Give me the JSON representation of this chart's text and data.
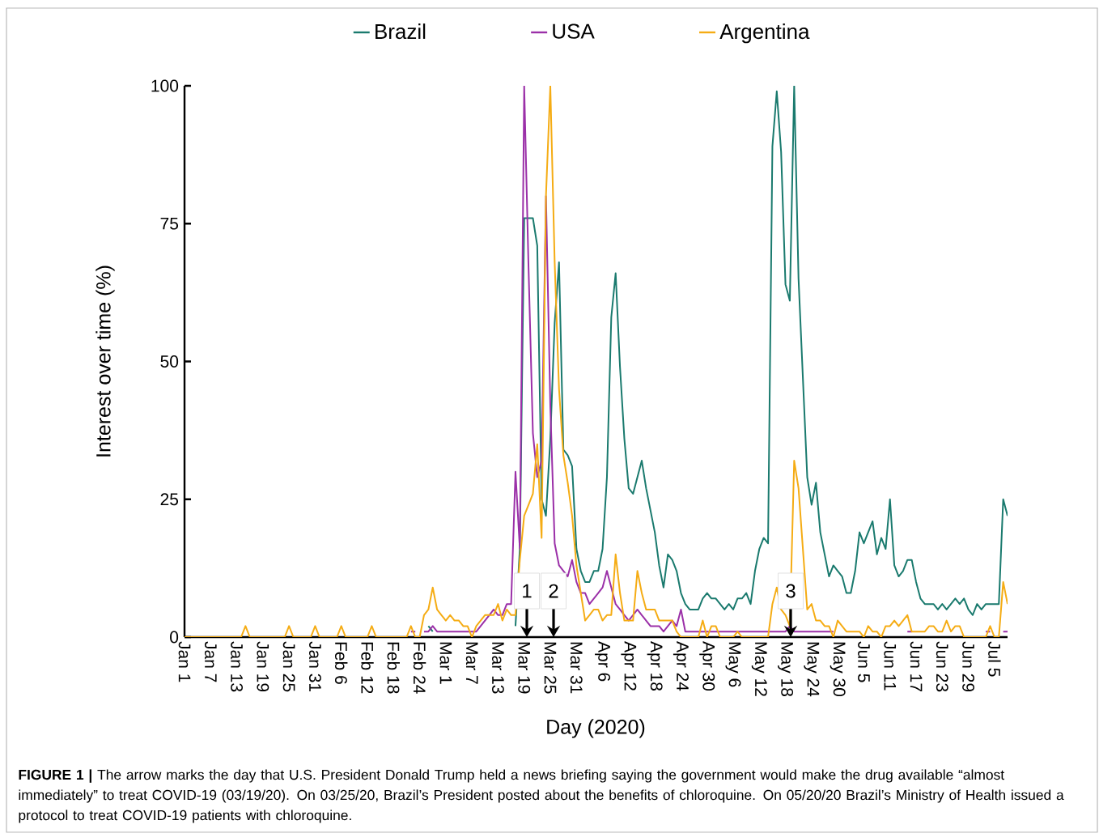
{
  "chart_data": {
    "type": "line",
    "xlabel": "Day (2020)",
    "ylabel": "Interest over time (%)",
    "legend": "top",
    "marker": "none",
    "line_style": "solid",
    "xlim": [
      "2020-01-01",
      "2020-07-08"
    ],
    "ylim": [
      0,
      100
    ],
    "yticks": [
      0,
      25,
      50,
      75,
      100
    ],
    "xticks": [
      {
        "value": "2020-01-01",
        "label": "Jan 1"
      },
      {
        "value": "2020-01-07",
        "label": "Jan 7"
      },
      {
        "value": "2020-01-13",
        "label": "Jan 13"
      },
      {
        "value": "2020-01-19",
        "label": "Jan 19"
      },
      {
        "value": "2020-01-25",
        "label": "Jan 25"
      },
      {
        "value": "2020-01-31",
        "label": "Jan 31"
      },
      {
        "value": "2020-02-06",
        "label": "Feb 6"
      },
      {
        "value": "2020-02-12",
        "label": "Feb 12"
      },
      {
        "value": "2020-02-18",
        "label": "Feb 18"
      },
      {
        "value": "2020-02-24",
        "label": "Feb 24"
      },
      {
        "value": "2020-03-01",
        "label": "Mar 1"
      },
      {
        "value": "2020-03-07",
        "label": "Mar 7"
      },
      {
        "value": "2020-03-13",
        "label": "Mar 13"
      },
      {
        "value": "2020-03-19",
        "label": "Mar 19"
      },
      {
        "value": "2020-03-25",
        "label": "Mar 25"
      },
      {
        "value": "2020-03-31",
        "label": "Mar 31"
      },
      {
        "value": "2020-04-06",
        "label": "Apr 6"
      },
      {
        "value": "2020-04-12",
        "label": "Apr 12"
      },
      {
        "value": "2020-04-18",
        "label": "Apr 18"
      },
      {
        "value": "2020-04-24",
        "label": "Apr 24"
      },
      {
        "value": "2020-04-30",
        "label": "Apr 30"
      },
      {
        "value": "2020-05-06",
        "label": "May 6"
      },
      {
        "value": "2020-05-12",
        "label": "May 12"
      },
      {
        "value": "2020-05-18",
        "label": "May 18"
      },
      {
        "value": "2020-05-24",
        "label": "May 24"
      },
      {
        "value": "2020-05-30",
        "label": "May 30"
      },
      {
        "value": "2020-06-05",
        "label": "Jun 5"
      },
      {
        "value": "2020-06-11",
        "label": "Jun 11"
      },
      {
        "value": "2020-06-17",
        "label": "Jun 17"
      },
      {
        "value": "2020-06-23",
        "label": "Jun 23"
      },
      {
        "value": "2020-06-29",
        "label": "Jun 29"
      },
      {
        "value": "2020-07-05",
        "label": "Jul 5"
      }
    ],
    "x": [
      "2020-01-01",
      "2020-01-02",
      "2020-01-03",
      "2020-01-04",
      "2020-01-05",
      "2020-01-06",
      "2020-01-07",
      "2020-01-08",
      "2020-01-09",
      "2020-01-10",
      "2020-01-11",
      "2020-01-12",
      "2020-01-13",
      "2020-01-14",
      "2020-01-15",
      "2020-01-16",
      "2020-01-17",
      "2020-01-18",
      "2020-01-19",
      "2020-01-20",
      "2020-01-21",
      "2020-01-22",
      "2020-01-23",
      "2020-01-24",
      "2020-01-25",
      "2020-01-26",
      "2020-01-27",
      "2020-01-28",
      "2020-01-29",
      "2020-01-30",
      "2020-01-31",
      "2020-02-01",
      "2020-02-02",
      "2020-02-03",
      "2020-02-04",
      "2020-02-05",
      "2020-02-06",
      "2020-02-07",
      "2020-02-08",
      "2020-02-09",
      "2020-02-10",
      "2020-02-11",
      "2020-02-12",
      "2020-02-13",
      "2020-02-14",
      "2020-02-15",
      "2020-02-16",
      "2020-02-17",
      "2020-02-18",
      "2020-02-19",
      "2020-02-20",
      "2020-02-21",
      "2020-02-22",
      "2020-02-23",
      "2020-02-24",
      "2020-02-25",
      "2020-02-26",
      "2020-02-27",
      "2020-02-28",
      "2020-02-29",
      "2020-03-01",
      "2020-03-02",
      "2020-03-03",
      "2020-03-04",
      "2020-03-05",
      "2020-03-06",
      "2020-03-07",
      "2020-03-08",
      "2020-03-09",
      "2020-03-10",
      "2020-03-11",
      "2020-03-12",
      "2020-03-13",
      "2020-03-14",
      "2020-03-15",
      "2020-03-16",
      "2020-03-17",
      "2020-03-18",
      "2020-03-19",
      "2020-03-20",
      "2020-03-21",
      "2020-03-22",
      "2020-03-23",
      "2020-03-24",
      "2020-03-25",
      "2020-03-26",
      "2020-03-27",
      "2020-03-28",
      "2020-03-29",
      "2020-03-30",
      "2020-03-31",
      "2020-04-01",
      "2020-04-02",
      "2020-04-03",
      "2020-04-04",
      "2020-04-05",
      "2020-04-06",
      "2020-04-07",
      "2020-04-08",
      "2020-04-09",
      "2020-04-10",
      "2020-04-11",
      "2020-04-12",
      "2020-04-13",
      "2020-04-14",
      "2020-04-15",
      "2020-04-16",
      "2020-04-17",
      "2020-04-18",
      "2020-04-19",
      "2020-04-20",
      "2020-04-21",
      "2020-04-22",
      "2020-04-23",
      "2020-04-24",
      "2020-04-25",
      "2020-04-26",
      "2020-04-27",
      "2020-04-28",
      "2020-04-29",
      "2020-04-30",
      "2020-05-01",
      "2020-05-02",
      "2020-05-03",
      "2020-05-04",
      "2020-05-05",
      "2020-05-06",
      "2020-05-07",
      "2020-05-08",
      "2020-05-09",
      "2020-05-10",
      "2020-05-11",
      "2020-05-12",
      "2020-05-13",
      "2020-05-14",
      "2020-05-15",
      "2020-05-16",
      "2020-05-17",
      "2020-05-18",
      "2020-05-19",
      "2020-05-20",
      "2020-05-21",
      "2020-05-22",
      "2020-05-23",
      "2020-05-24",
      "2020-05-25",
      "2020-05-26",
      "2020-05-27",
      "2020-05-28",
      "2020-05-29",
      "2020-05-30",
      "2020-05-31",
      "2020-06-01",
      "2020-06-02",
      "2020-06-03",
      "2020-06-04",
      "2020-06-05",
      "2020-06-06",
      "2020-06-07",
      "2020-06-08",
      "2020-06-09",
      "2020-06-10",
      "2020-06-11",
      "2020-06-12",
      "2020-06-13",
      "2020-06-14",
      "2020-06-15",
      "2020-06-16",
      "2020-06-17",
      "2020-06-18",
      "2020-06-19",
      "2020-06-20",
      "2020-06-21",
      "2020-06-22",
      "2020-06-23",
      "2020-06-24",
      "2020-06-25",
      "2020-06-26",
      "2020-06-27",
      "2020-06-28",
      "2020-06-29",
      "2020-06-30",
      "2020-07-01",
      "2020-07-02",
      "2020-07-03",
      "2020-07-04",
      "2020-07-05",
      "2020-07-06",
      "2020-07-07",
      "2020-07-08"
    ],
    "series": [
      {
        "name": "Brazil",
        "color": "#1a7a6e",
        "values": [
          null,
          null,
          null,
          null,
          null,
          null,
          null,
          null,
          null,
          null,
          null,
          null,
          null,
          null,
          null,
          null,
          null,
          null,
          null,
          null,
          null,
          null,
          null,
          null,
          null,
          null,
          null,
          null,
          null,
          null,
          null,
          null,
          null,
          null,
          null,
          null,
          null,
          null,
          null,
          null,
          null,
          null,
          null,
          null,
          null,
          null,
          null,
          null,
          null,
          null,
          null,
          null,
          null,
          null,
          null,
          null,
          2,
          1,
          null,
          null,
          null,
          null,
          null,
          null,
          null,
          null,
          null,
          null,
          null,
          null,
          null,
          null,
          null,
          null,
          null,
          null,
          2,
          16,
          76,
          76,
          76,
          71,
          25,
          22,
          36,
          57,
          68,
          34,
          33,
          31,
          16,
          12,
          10,
          10,
          12,
          12,
          16,
          29,
          58,
          66,
          49,
          36,
          27,
          26,
          29,
          32,
          27,
          23,
          19,
          13,
          9,
          15,
          14,
          12,
          8,
          6,
          5,
          5,
          5,
          7,
          8,
          7,
          7,
          6,
          5,
          6,
          5,
          7,
          7,
          8,
          6,
          12,
          16,
          18,
          17,
          89,
          99,
          88,
          64,
          61,
          100,
          65,
          47,
          29,
          24,
          28,
          19,
          15,
          11,
          13,
          12,
          11,
          8,
          8,
          12,
          19,
          17,
          19,
          21,
          15,
          18,
          16,
          25,
          13,
          11,
          12,
          14,
          14,
          10,
          7,
          6,
          6,
          6,
          5,
          6,
          5,
          6,
          7,
          6,
          7,
          5,
          4,
          6,
          5,
          6,
          6,
          6,
          6,
          25,
          22
        ]
      },
      {
        "name": "USA",
        "color": "#9b30a8",
        "values": [
          null,
          null,
          null,
          null,
          null,
          null,
          null,
          null,
          null,
          null,
          null,
          null,
          null,
          null,
          null,
          null,
          null,
          null,
          null,
          null,
          null,
          null,
          null,
          null,
          null,
          null,
          null,
          null,
          null,
          null,
          null,
          null,
          null,
          null,
          null,
          null,
          null,
          null,
          null,
          null,
          null,
          null,
          null,
          null,
          null,
          null,
          null,
          null,
          null,
          null,
          null,
          null,
          1,
          1,
          null,
          1,
          1,
          2,
          1,
          1,
          1,
          1,
          1,
          1,
          1,
          1,
          1,
          1,
          2,
          3,
          4,
          5,
          4,
          4,
          6,
          6,
          30,
          16,
          100,
          67,
          37,
          29,
          32,
          80,
          42,
          17,
          13,
          12,
          11,
          14,
          10,
          8,
          8,
          6,
          7,
          8,
          9,
          12,
          9,
          6,
          5,
          4,
          3,
          4,
          5,
          4,
          3,
          2,
          2,
          2,
          1,
          2,
          3,
          2,
          5,
          1,
          1,
          1,
          1,
          1,
          1,
          1,
          1,
          1,
          1,
          1,
          1,
          1,
          1,
          1,
          1,
          1,
          1,
          1,
          1,
          1,
          1,
          1,
          1,
          2,
          1,
          1,
          1,
          1,
          1,
          1,
          1,
          1,
          1,
          1,
          null,
          null,
          null,
          null,
          null,
          null,
          null,
          null,
          null,
          null,
          null,
          null,
          null,
          null,
          null,
          null,
          1,
          1,
          null,
          null,
          null,
          null,
          null,
          null,
          null,
          null,
          null,
          null,
          null,
          null,
          null,
          null,
          null,
          null,
          1,
          1,
          null,
          null,
          1,
          1
        ]
      },
      {
        "name": "Argentina",
        "color": "#f5ac14",
        "values": [
          0,
          0,
          0,
          0,
          0,
          0,
          0,
          0,
          0,
          0,
          0,
          0,
          0,
          0,
          2,
          0,
          0,
          0,
          0,
          0,
          0,
          0,
          0,
          0,
          2,
          0,
          0,
          0,
          0,
          0,
          2,
          0,
          0,
          0,
          0,
          0,
          2,
          0,
          0,
          0,
          0,
          0,
          0,
          2,
          0,
          0,
          0,
          0,
          0,
          0,
          0,
          0,
          2,
          0,
          0,
          4,
          5,
          9,
          5,
          4,
          3,
          4,
          3,
          3,
          2,
          2,
          0,
          2,
          3,
          4,
          4,
          4,
          6,
          3,
          5,
          4,
          4,
          14,
          22,
          24,
          26,
          35,
          18,
          80,
          100,
          68,
          45,
          33,
          28,
          22,
          13,
          8,
          3,
          4,
          5,
          5,
          3,
          4,
          4,
          15,
          8,
          3,
          3,
          3,
          12,
          8,
          5,
          5,
          5,
          3,
          3,
          3,
          3,
          1,
          0,
          0,
          0,
          0,
          0,
          3,
          0,
          2,
          2,
          0,
          0,
          0,
          0,
          1,
          0,
          0,
          0,
          0,
          0,
          0,
          0,
          6,
          9,
          5,
          4,
          2,
          32,
          27,
          16,
          5,
          6,
          3,
          3,
          2,
          2,
          0,
          3,
          2,
          1,
          1,
          1,
          1,
          0,
          2,
          1,
          1,
          0,
          2,
          2,
          3,
          2,
          3,
          4,
          1,
          1,
          1,
          1,
          2,
          2,
          1,
          1,
          3,
          1,
          2,
          2,
          0,
          0,
          0,
          0,
          0,
          0,
          2,
          0,
          0,
          10,
          6
        ]
      }
    ],
    "annotations": [
      "1",
      "2",
      "3",
      "**FIGURE 1 |** The arrow marks the day that U.S. President Donald Trump held a news briefing saying the government would make the drug available “almost immediately” to treat COVID-19 (03/19/20). On 03/25/20, Brazil’s President posted about the benefits of chloroquine. On 05/20/20 Brazil’s Ministry of Health issued a protocol to treat COVID-19 patients with chloroquine."
    ]
  }
}
